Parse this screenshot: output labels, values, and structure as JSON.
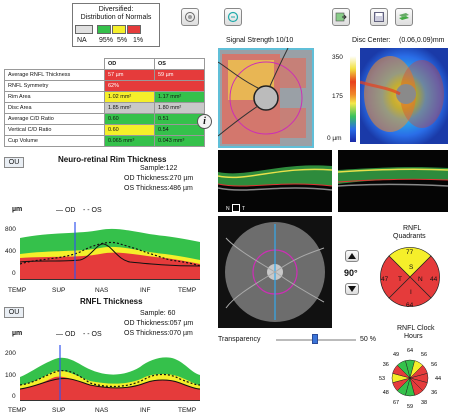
{
  "legend": {
    "title_line1": "Diversified:",
    "title_line2": "Distribution of Normals",
    "labels": [
      "NA",
      "95%",
      "5%",
      "1%"
    ],
    "colors": [
      "#e0e0e0",
      "#35c14b",
      "#f5ef2a",
      "#e53b3b"
    ]
  },
  "toolbar": {
    "icons": [
      "print-icon",
      "compare-icon",
      "export-icon",
      "save-icon",
      "layers-icon"
    ]
  },
  "table": {
    "headers": [
      "",
      "OD",
      "OS"
    ],
    "rows": [
      {
        "label": "Average RNFL Thickness",
        "od": "57 µm",
        "os": "59 µm",
        "od_c": "red",
        "os_c": "red"
      },
      {
        "label": "RNFL Symmetry",
        "od": "62%",
        "os": "",
        "od_c": "red",
        "os_c": "red"
      },
      {
        "label": "Rim Area",
        "od": "1.02 mm²",
        "os": "1.17 mm²",
        "od_c": "yellow",
        "os_c": "green"
      },
      {
        "label": "Disc Area",
        "od": "1.85 mm²",
        "os": "1.80 mm²",
        "od_c": "gray",
        "os_c": "gray"
      },
      {
        "label": "Average C/D Ratio",
        "od": "0.60",
        "os": "0.51",
        "od_c": "green",
        "os_c": "green"
      },
      {
        "label": "Vertical C/D Ratio",
        "od": "0.60",
        "os": "0.54",
        "od_c": "yellow",
        "os_c": "green"
      },
      {
        "label": "Cup Volume",
        "od": "0.065 mm³",
        "os": "0.043 mm³",
        "od_c": "green",
        "os_c": "green"
      }
    ]
  },
  "rim": {
    "ou": "OU",
    "title": "Neuro-retinal Rim Thickness",
    "sample": "Sample:122",
    "od_thickness": "OD Thickness:270 µm",
    "os_thickness": "OS Thickness:486 µm",
    "unit": "µm",
    "legend_od": "— OD",
    "legend_os": "- - OS",
    "yticks": [
      "800",
      "400",
      "0"
    ],
    "xticks": [
      "TEMP",
      "SUP",
      "NAS",
      "INF",
      "TEMP"
    ]
  },
  "rnfl": {
    "ou": "OU",
    "title": "RNFL Thickness",
    "sample": "Sample: 60",
    "od_thickness": "OD Thickness:057 µm",
    "os_thickness": "OS Thickness:070 µm",
    "unit": "µm",
    "legend_od": "— OD",
    "legend_os": "- - OS",
    "yticks": [
      "200",
      "100",
      "0"
    ],
    "xticks": [
      "TEMP",
      "SUP",
      "NAS",
      "INF",
      "TEMP"
    ]
  },
  "fundus": {
    "signal": "Signal Strength  10/10",
    "disc_center": "Disc Center:",
    "disc_coords": "(0.06,0.09)mm",
    "scale": [
      "350",
      "175",
      "0 µm"
    ],
    "n_label": "N",
    "t_label": "T"
  },
  "rotation": {
    "value": "90°"
  },
  "transparency": {
    "label": "Transparency",
    "value": "50 %",
    "level": 0.5
  },
  "quadrants": {
    "title_line1": "RNFL",
    "title_line2": "Quadrants",
    "values": {
      "top": "77",
      "right": "44",
      "bottom": "64",
      "left": "47"
    },
    "inner": {
      "s": "S",
      "n": "N",
      "i": "I",
      "t": "T"
    }
  },
  "clock": {
    "title_line1": "RNFL  Clock",
    "title_line2": "Hours",
    "values": [
      "64",
      "56",
      "56",
      "44",
      "36",
      "38",
      "59",
      "67",
      "48",
      "53",
      "36",
      "49"
    ]
  }
}
